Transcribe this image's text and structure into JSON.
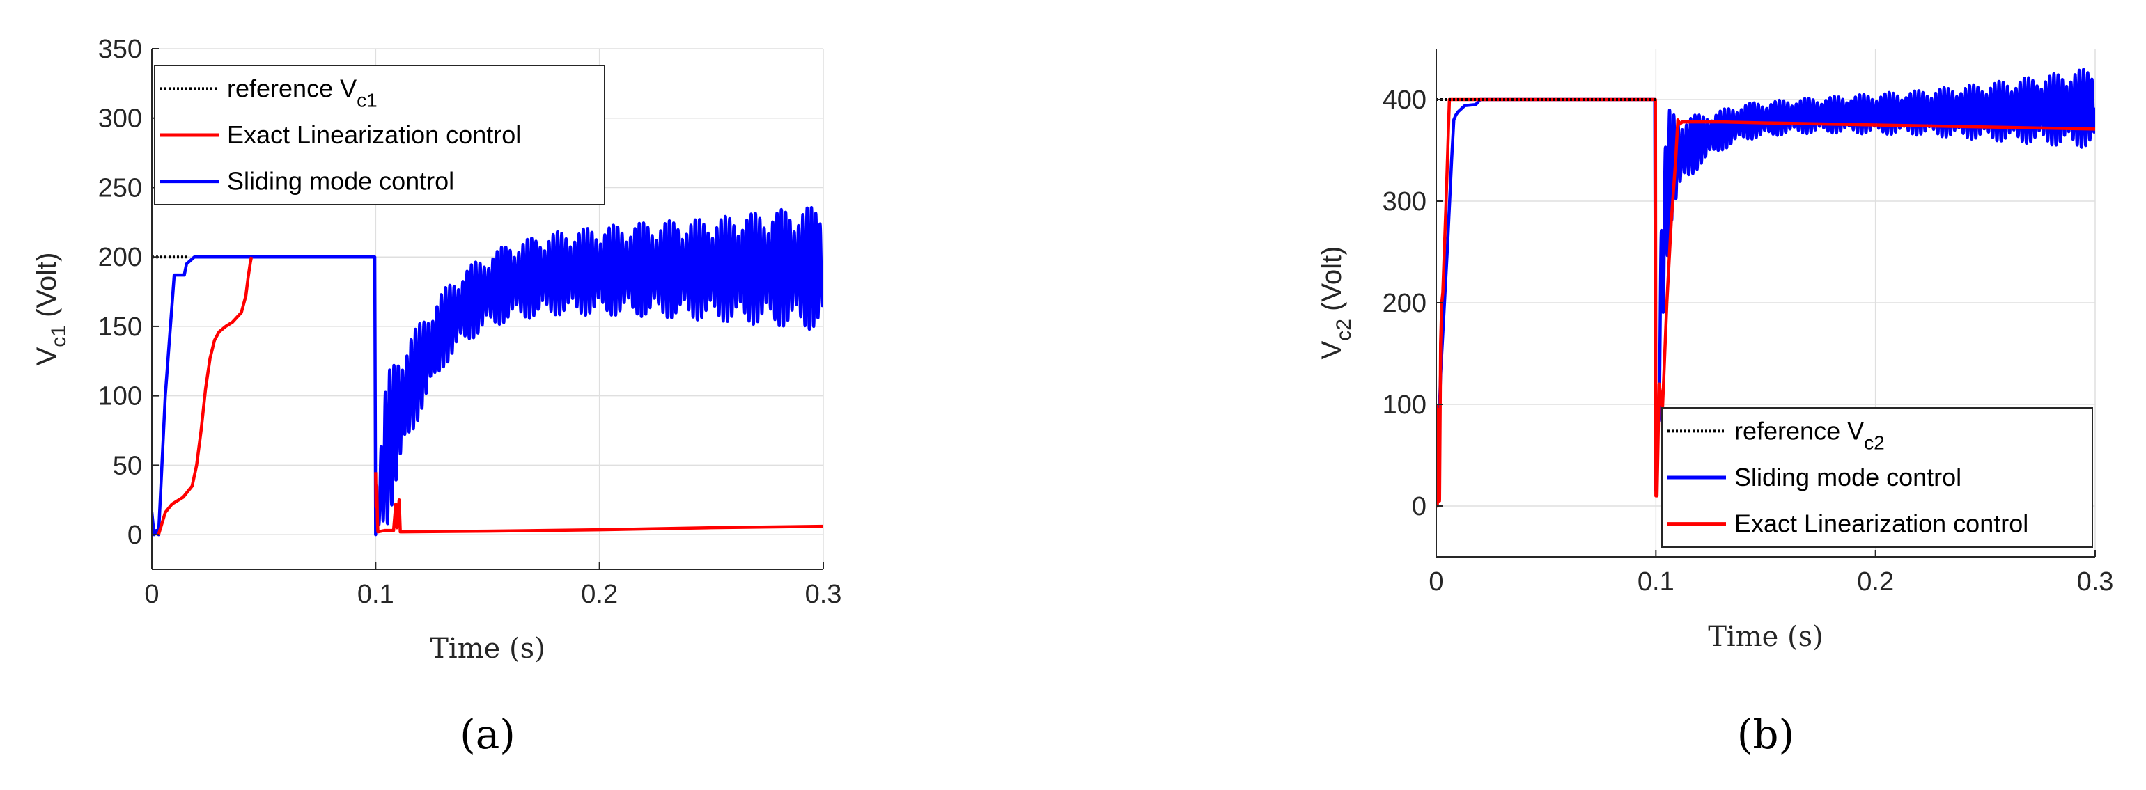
{
  "colors": {
    "reference": "#000000",
    "exact": "#ff0000",
    "sliding": "#0000ff",
    "grid": "#dfdfdf",
    "axis": "#262626"
  },
  "chart_data": [
    {
      "type": "line",
      "panel_label": "(a)",
      "xlabel": "Time (s)",
      "ylabel": {
        "main": "V",
        "sub": "c1",
        "rest": " (Volt)"
      },
      "xlim": [
        0,
        0.3
      ],
      "ylim": [
        -25,
        350
      ],
      "xticks": [
        0,
        0.1,
        0.2,
        0.3
      ],
      "xtick_labels": [
        "0",
        "0.1",
        "0.2",
        "0.3"
      ],
      "yticks": [
        0,
        50,
        100,
        150,
        200,
        250,
        300,
        350
      ],
      "ytick_labels": [
        "0",
        "50",
        "100",
        "150",
        "200",
        "250",
        "300",
        "350"
      ],
      "grid": true,
      "legend_position": "top-left",
      "legend": [
        {
          "key": "reference",
          "label": "reference V",
          "sub": "c1"
        },
        {
          "key": "exact",
          "label": "Exact Linearization control",
          "sub": ""
        },
        {
          "key": "sliding",
          "label": "Sliding mode control",
          "sub": ""
        }
      ],
      "series": [
        {
          "key": "reference",
          "style": "dotted",
          "x": [
            0,
            0.016
          ],
          "y": [
            200,
            200
          ]
        },
        {
          "key": "sliding",
          "style": "solid",
          "x": [
            0,
            0.001,
            0.002,
            0.003,
            0.006,
            0.01,
            0.011,
            0.0145,
            0.0155,
            0.019,
            0.0995,
            0.0996,
            0.1
          ],
          "y": [
            16,
            0,
            3,
            0,
            100,
            187,
            187,
            187,
            195,
            200,
            200,
            200,
            0
          ],
          "oscillation": {
            "t_start": 0.1,
            "t_end": 0.3,
            "envelope_t": [
              0.1,
              0.101,
              0.103,
              0.105,
              0.11,
              0.115,
              0.12,
              0.13,
              0.14,
              0.15,
              0.16,
              0.18,
              0.2,
              0.22,
              0.25,
              0.28,
              0.3
            ],
            "center": [
              10,
              15,
              45,
              60,
              85,
              105,
              120,
              148,
              165,
              175,
              182,
              188,
              190,
              191,
              191,
              192,
              192
            ],
            "amplitude": [
              10,
              15,
              40,
              55,
              45,
              38,
              33,
              28,
              27,
              27,
              28,
              30,
              32,
              34,
              37,
              42,
              45
            ]
          }
        },
        {
          "key": "exact",
          "style": "solid",
          "x": [
            0.003,
            0.006,
            0.009,
            0.014,
            0.018,
            0.02,
            0.022,
            0.024,
            0.026,
            0.028,
            0.03,
            0.033,
            0.036,
            0.04,
            0.042,
            0.043,
            0.044,
            0.0445
          ],
          "y": [
            0,
            16,
            22,
            27,
            35,
            50,
            75,
            105,
            127,
            140,
            146,
            150,
            153,
            160,
            172,
            185,
            196,
            200
          ]
        },
        {
          "key": "exact",
          "style": "solid",
          "x": [
            0.1,
            0.1002,
            0.1005,
            0.1008,
            0.101,
            0.104,
            0.108,
            0.109,
            0.1095,
            0.1105,
            0.111,
            0.112,
            0.15,
            0.2,
            0.25,
            0.3
          ],
          "y": [
            45,
            20,
            35,
            10,
            2,
            3,
            3,
            22,
            5,
            25,
            2,
            2,
            2.5,
            3.5,
            5,
            6
          ]
        }
      ]
    },
    {
      "type": "line",
      "panel_label": "(b)",
      "xlabel": "Time (s)",
      "ylabel": {
        "main": "V",
        "sub": "c2",
        "rest": " (Volt)"
      },
      "xlim": [
        0,
        0.3
      ],
      "ylim": [
        -50,
        450
      ],
      "xticks": [
        0,
        0.1,
        0.2,
        0.3
      ],
      "xtick_labels": [
        "0",
        "0.1",
        "0.2",
        "0.3"
      ],
      "yticks": [
        0,
        100,
        200,
        300,
        400
      ],
      "ytick_labels": [
        "0",
        "100",
        "200",
        "300",
        "400"
      ],
      "grid": true,
      "legend_position": "bottom-right",
      "legend": [
        {
          "key": "reference",
          "label": "reference V",
          "sub": "c2"
        },
        {
          "key": "sliding",
          "label": "Sliding mode control",
          "sub": ""
        },
        {
          "key": "exact",
          "label": "Exact Linearization control",
          "sub": ""
        }
      ],
      "series": [
        {
          "key": "reference",
          "style": "dotted",
          "x": [
            0,
            0.1
          ],
          "y": [
            400,
            400
          ]
        },
        {
          "key": "sliding",
          "style": "solid",
          "x": [
            0,
            0.002,
            0.005,
            0.007,
            0.008,
            0.009,
            0.01,
            0.011,
            0.013,
            0.018,
            0.02,
            0.0995,
            0.1
          ],
          "y": [
            0,
            130,
            250,
            340,
            380,
            385,
            388,
            390,
            394,
            395,
            400,
            400,
            15
          ],
          "oscillation": {
            "t_start": 0.1,
            "t_end": 0.3,
            "envelope_t": [
              0.1,
              0.101,
              0.103,
              0.106,
              0.11,
              0.12,
              0.13,
              0.14,
              0.16,
              0.18,
              0.2,
              0.22,
              0.25,
              0.28,
              0.3
            ],
            "center": [
              15,
              100,
              250,
              330,
              345,
              360,
              370,
              378,
              383,
              385,
              386,
              387,
              388,
              390,
              392
            ],
            "amplitude": [
              10,
              60,
              80,
              60,
              40,
              25,
              20,
              18,
              17,
              18,
              20,
              22,
              28,
              35,
              40
            ]
          }
        },
        {
          "key": "exact",
          "style": "solid",
          "x": [
            0,
            0.0005,
            0.001,
            0.0015,
            0.002,
            0.0025,
            0.003,
            0.0045,
            0.006,
            0.08,
            0.0998,
            0.1,
            0.1005,
            0.1015,
            0.103,
            0.105,
            0.107,
            0.109,
            0.11,
            0.111,
            0.112,
            0.13,
            0.15,
            0.2,
            0.25,
            0.3
          ],
          "y": [
            100,
            0,
            95,
            5,
            160,
            200,
            210,
            300,
            400,
            400,
            400,
            10,
            10,
            120,
            95,
            200,
            280,
            340,
            380,
            376,
            378,
            378,
            377,
            375,
            373,
            371
          ]
        }
      ]
    }
  ]
}
